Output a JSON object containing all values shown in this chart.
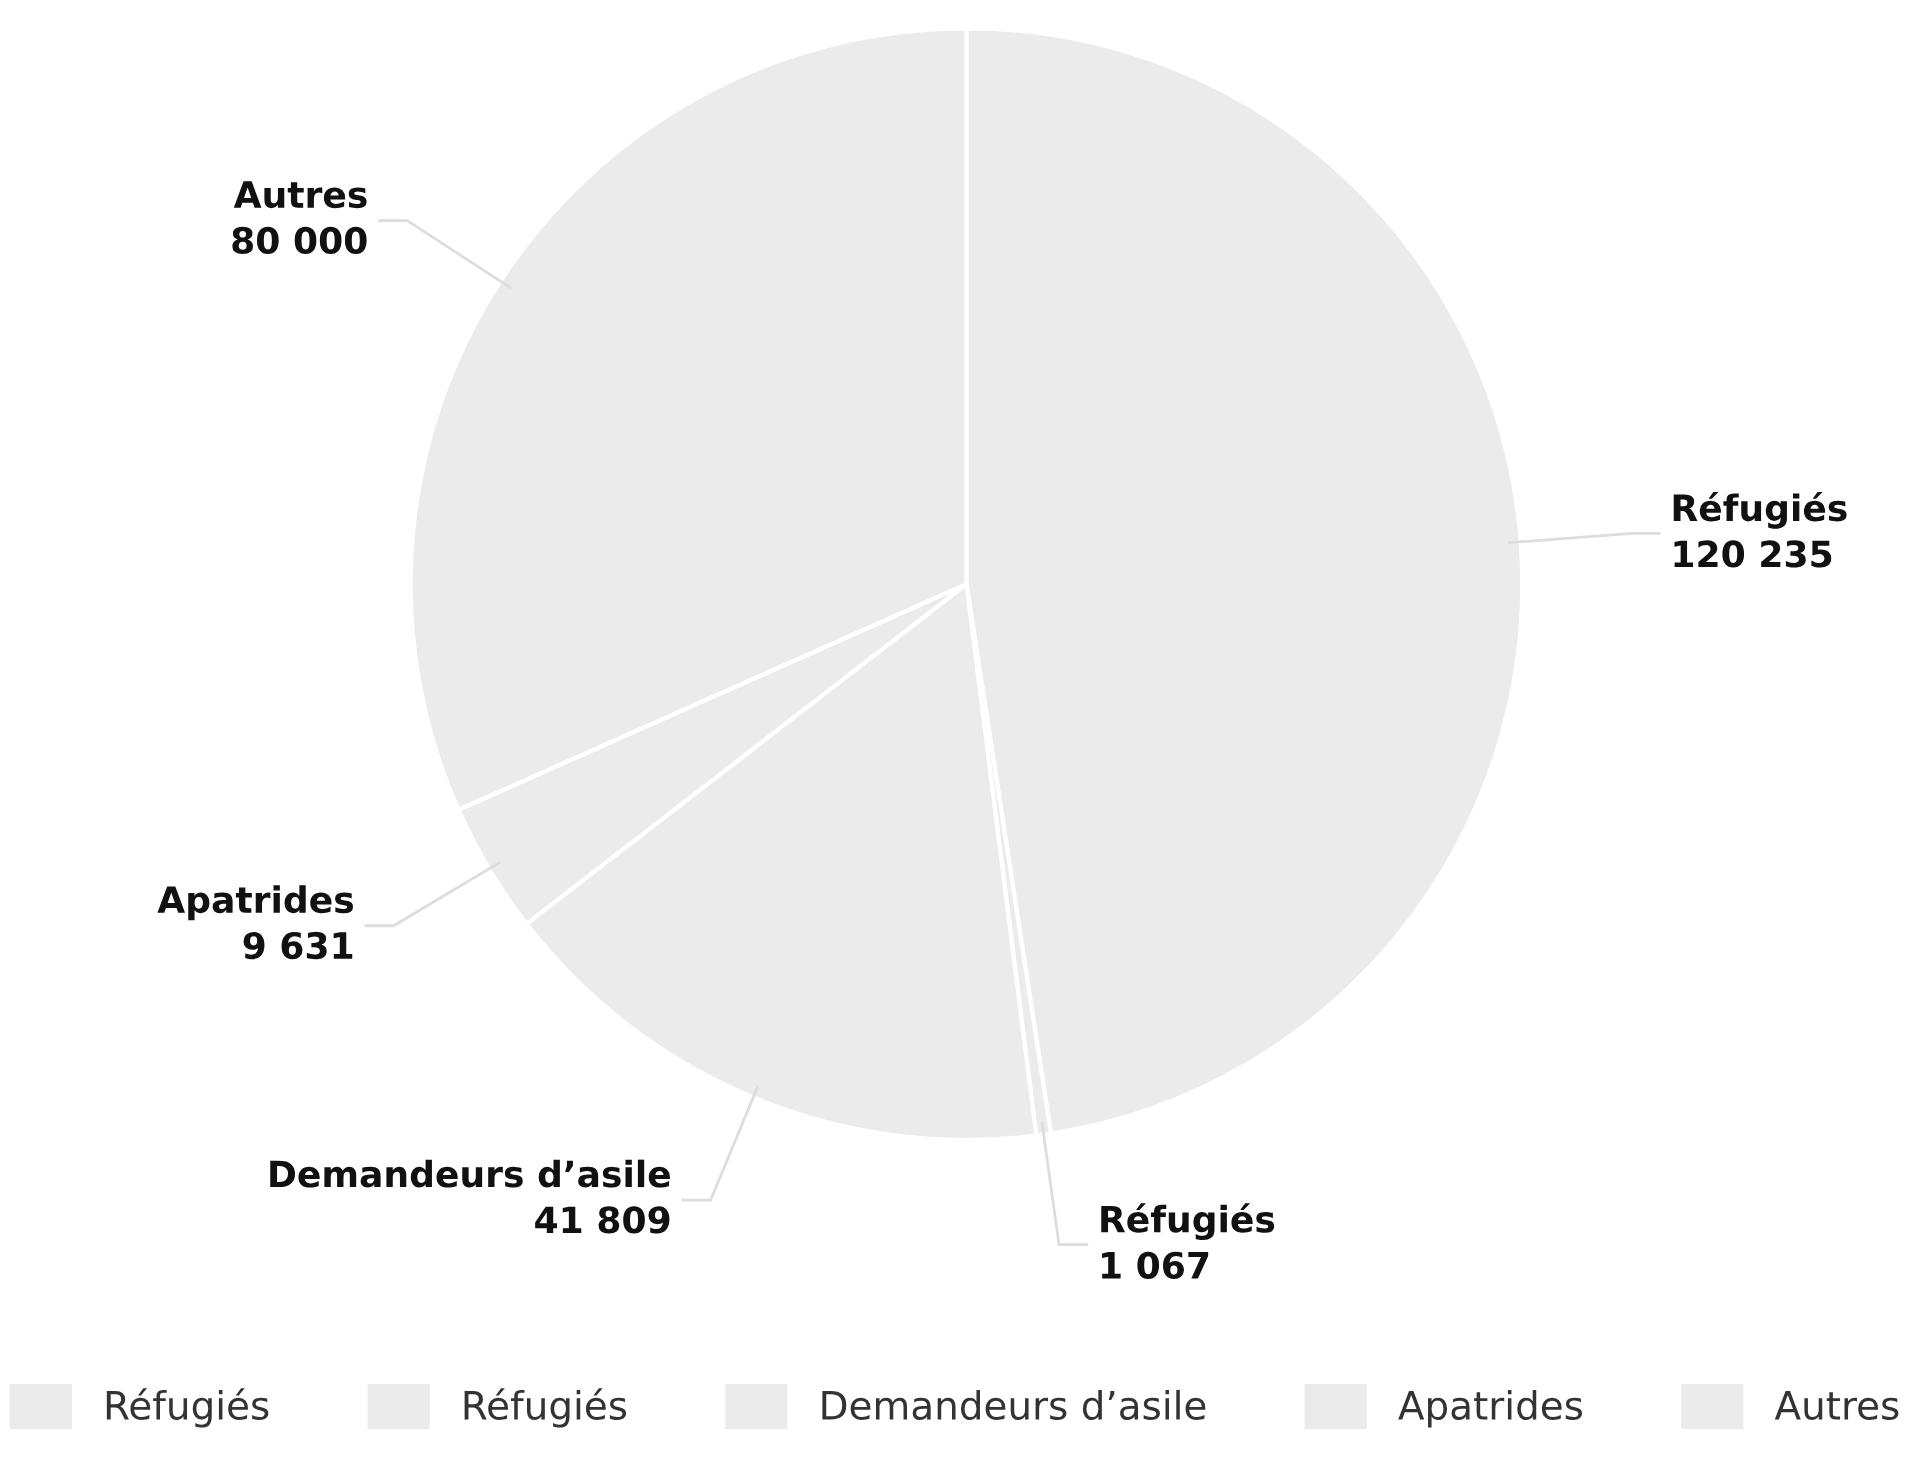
{
  "chart_data": {
    "type": "pie",
    "categories": [
      "Réfugiés",
      "Réfugiés",
      "Demandeurs d’asile",
      "Apatrides",
      "Autres"
    ],
    "values": [
      120235,
      1067,
      41809,
      9631,
      80000
    ],
    "value_labels": [
      "120 235",
      "1 067",
      "41 809",
      "9 631",
      "80 000"
    ],
    "colors": [
      "#ebebeb",
      "#ebebeb",
      "#ebebeb",
      "#ebebeb",
      "#ebebeb"
    ],
    "legend": "bottom"
  }
}
